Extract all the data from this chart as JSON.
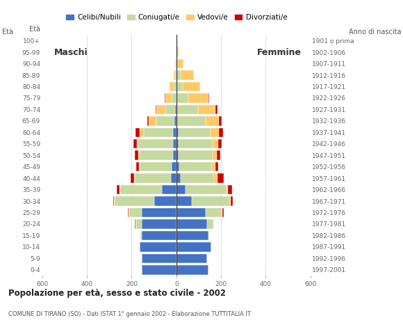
{
  "age_groups": [
    "0-4",
    "5-9",
    "10-14",
    "15-19",
    "20-24",
    "25-29",
    "30-34",
    "35-39",
    "40-44",
    "45-49",
    "50-54",
    "55-59",
    "60-64",
    "65-69",
    "70-74",
    "75-79",
    "80-84",
    "85-89",
    "90-94",
    "95-99",
    "100+"
  ],
  "birth_years": [
    "1997-2001",
    "1992-1996",
    "1987-1991",
    "1982-1986",
    "1977-1981",
    "1972-1976",
    "1967-1971",
    "1962-1966",
    "1957-1961",
    "1952-1956",
    "1947-1951",
    "1942-1946",
    "1937-1941",
    "1932-1936",
    "1927-1931",
    "1922-1926",
    "1917-1921",
    "1912-1916",
    "1907-1911",
    "1902-1906",
    "1901 o prima"
  ],
  "males_celibe": [
    155,
    155,
    165,
    155,
    155,
    155,
    100,
    65,
    25,
    20,
    15,
    15,
    15,
    10,
    5,
    0,
    0,
    0,
    0,
    0,
    0
  ],
  "males_coniugato": [
    0,
    0,
    0,
    5,
    25,
    55,
    175,
    185,
    160,
    145,
    150,
    155,
    130,
    80,
    45,
    22,
    12,
    5,
    2,
    0,
    0
  ],
  "males_vedovo": [
    0,
    0,
    0,
    0,
    2,
    3,
    3,
    3,
    3,
    3,
    5,
    8,
    18,
    35,
    38,
    28,
    18,
    8,
    2,
    0,
    0
  ],
  "males_divorziato": [
    0,
    0,
    0,
    0,
    3,
    5,
    5,
    15,
    18,
    13,
    15,
    15,
    20,
    5,
    5,
    2,
    0,
    0,
    0,
    0,
    0
  ],
  "females_nubile": [
    143,
    138,
    155,
    143,
    138,
    130,
    68,
    42,
    18,
    13,
    10,
    10,
    10,
    5,
    3,
    0,
    0,
    0,
    0,
    0,
    0
  ],
  "females_coniugata": [
    0,
    0,
    0,
    5,
    28,
    73,
    172,
    182,
    152,
    148,
    152,
    153,
    143,
    128,
    95,
    55,
    28,
    18,
    5,
    2,
    0
  ],
  "females_vedova": [
    0,
    0,
    0,
    0,
    2,
    3,
    5,
    8,
    13,
    13,
    18,
    23,
    38,
    58,
    78,
    88,
    78,
    62,
    28,
    8,
    2
  ],
  "females_divorziata": [
    0,
    0,
    0,
    0,
    2,
    5,
    8,
    18,
    28,
    13,
    18,
    18,
    18,
    13,
    8,
    5,
    0,
    0,
    0,
    0,
    0
  ],
  "color_celibe": "#4472c4",
  "color_coniugato": "#c5d9a0",
  "color_vedovo": "#ffc966",
  "color_divorziato": "#cc0000",
  "legend_labels": [
    "Celibi/Nubili",
    "Coniugati/e",
    "Vedovi/e",
    "Divorziati/e"
  ],
  "legend_colors": [
    "#4472c4",
    "#c5d9a0",
    "#ffc966",
    "#cc0000"
  ],
  "title": "Popolazione per età, sesso e stato civile - 2002",
  "subtitle": "COMUNE DI TIRANO (SO) - Dati ISTAT 1° gennaio 2002 - Elaborazione TUTTITALIA.IT",
  "label_maschi": "Maschi",
  "label_femmine": "Femmine",
  "label_eta": "Età",
  "label_anno": "Anno di nascita",
  "xlim": 600,
  "bar_height": 0.82
}
